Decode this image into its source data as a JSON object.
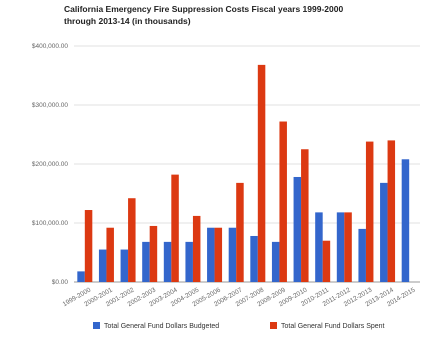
{
  "chart_data": {
    "type": "bar",
    "title_lines": [
      "California Emergency Fire Suppression Costs Fiscal years 1999-2000",
      "through 2013-14 (in thousands)"
    ],
    "categories": [
      "1999-2000",
      "2000-2001",
      "2001-2002",
      "2002-2003",
      "2003-2004",
      "2004-2005",
      "2005-2006",
      "2006-2007",
      "2007-2008",
      "2008-2009",
      "2009-2010",
      "2010-2011",
      "2011-2012",
      "2012-2013",
      "2013-2014",
      "2014-2015"
    ],
    "series": [
      {
        "name": "Total General Fund Dollars Budgeted",
        "color": "#3366cc",
        "values": [
          18,
          55,
          55,
          68,
          68,
          68,
          92,
          92,
          78,
          68,
          178,
          118,
          118,
          90,
          168,
          208
        ]
      },
      {
        "name": "Total General Fund Dollars Spent",
        "color": "#dc3912",
        "values": [
          122,
          92,
          142,
          95,
          182,
          112,
          92,
          168,
          368,
          272,
          225,
          70,
          118,
          238,
          240,
          null
        ]
      }
    ],
    "yticks": [
      "$0.00",
      "$100,000.00",
      "$200,000.00",
      "$300,000.00",
      "$400,000.00"
    ],
    "ylim": [
      0,
      400
    ],
    "grid": true,
    "legend_position": "bottom"
  }
}
